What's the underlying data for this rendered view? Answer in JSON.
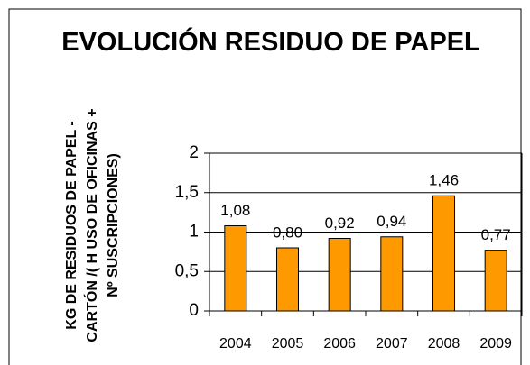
{
  "chart_data": {
    "type": "bar",
    "title": "EVOLUCIÓN RESIDUO DE PAPEL",
    "y_label": "KG DE RESIDUOS DE PAPEL - CARTÓN /( H USO DE OFICINAS + Nº SUSCRIPCIONES)",
    "categories": [
      "2004",
      "2005",
      "2006",
      "2007",
      "2008",
      "2009"
    ],
    "values": [
      1.08,
      0.8,
      0.92,
      0.94,
      1.46,
      0.77
    ],
    "value_labels": [
      "1,08",
      "0,80",
      "0,92",
      "0,94",
      "1,46",
      "0,77"
    ],
    "color": "#ff9900",
    "ylim": [
      0,
      2
    ],
    "yticks": [
      0,
      {
        "value": 0.5,
        "label": "0,5"
      },
      1,
      {
        "value": 1.5,
        "label": "1,5"
      },
      2
    ],
    "grid": true
  }
}
